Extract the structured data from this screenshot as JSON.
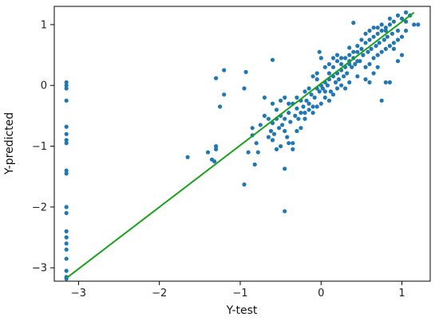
{
  "chart_data": {
    "type": "scatter",
    "title": "",
    "xlabel": "Y-test",
    "ylabel": "Y-predicted",
    "xlim": [
      -3.3,
      1.35
    ],
    "ylim": [
      -3.22,
      1.3
    ],
    "xticks": [
      -3,
      -2,
      -1,
      0,
      1
    ],
    "yticks": [
      -3,
      -2,
      -1,
      0,
      1
    ],
    "xtick_labels": [
      "−3",
      "−2",
      "−1",
      "0",
      "1"
    ],
    "ytick_labels": [
      "−3",
      "−2",
      "−1",
      "0",
      "1"
    ],
    "grid": false,
    "legend": "none",
    "point_color": "#1f77b4",
    "line_color": "#1aa01a",
    "fit_line": {
      "x": [
        -3.15,
        1.15
      ],
      "y": [
        -3.17,
        1.2
      ]
    },
    "series": [
      {
        "points": [
          [
            -3.15,
            0.05
          ],
          [
            -3.15,
            0.0
          ],
          [
            -3.15,
            -0.05
          ],
          [
            -3.15,
            -0.25
          ],
          [
            -3.15,
            -0.68
          ],
          [
            -3.15,
            -0.8
          ],
          [
            -3.15,
            -0.9
          ],
          [
            -3.15,
            -0.95
          ],
          [
            -3.15,
            -1.4
          ],
          [
            -3.15,
            -1.45
          ],
          [
            -3.15,
            -2.0
          ],
          [
            -3.15,
            -2.1
          ],
          [
            -3.15,
            -2.4
          ],
          [
            -3.15,
            -2.5
          ],
          [
            -3.15,
            -2.6
          ],
          [
            -3.15,
            -2.7
          ],
          [
            -3.15,
            -2.85
          ],
          [
            -3.15,
            -3.05
          ],
          [
            -3.15,
            -3.15
          ],
          [
            -3.15,
            -3.18
          ],
          [
            -1.65,
            -1.18
          ],
          [
            -1.4,
            -1.1
          ],
          [
            -1.35,
            -1.22
          ],
          [
            -1.32,
            -1.25
          ],
          [
            -1.3,
            -1.0
          ],
          [
            -1.3,
            -1.05
          ],
          [
            -1.25,
            -0.35
          ],
          [
            -1.2,
            -0.15
          ],
          [
            -1.2,
            0.25
          ],
          [
            -1.3,
            0.12
          ],
          [
            -0.95,
            -0.05
          ],
          [
            -0.93,
            0.22
          ],
          [
            -0.9,
            -1.1
          ],
          [
            -0.95,
            -1.63
          ],
          [
            -0.6,
            0.42
          ],
          [
            -0.45,
            -2.07
          ],
          [
            -0.45,
            -1.37
          ],
          [
            -0.85,
            -0.7
          ],
          [
            -0.85,
            -0.82
          ],
          [
            -0.82,
            -1.3
          ],
          [
            -0.7,
            -0.5
          ],
          [
            -0.65,
            -0.55
          ],
          [
            -0.62,
            -0.75
          ],
          [
            -0.6,
            -0.62
          ],
          [
            -0.58,
            -0.8
          ],
          [
            -0.55,
            -0.55
          ],
          [
            -0.52,
            -0.7
          ],
          [
            -0.5,
            -0.5
          ],
          [
            -0.48,
            -0.65
          ],
          [
            -0.45,
            -0.55
          ],
          [
            -0.42,
            -0.85
          ],
          [
            -0.4,
            -0.45
          ],
          [
            -0.38,
            -0.6
          ],
          [
            -0.35,
            -0.95
          ],
          [
            -0.32,
            -0.5
          ],
          [
            -0.3,
            -0.38
          ],
          [
            -0.28,
            -0.55
          ],
          [
            -0.25,
            -0.7
          ],
          [
            -0.22,
            -0.35
          ],
          [
            -0.2,
            -0.45
          ],
          [
            -0.18,
            -0.25
          ],
          [
            -0.15,
            -0.3
          ],
          [
            -0.12,
            -0.15
          ],
          [
            -0.1,
            -0.35
          ],
          [
            -0.08,
            -0.2
          ],
          [
            -0.05,
            -0.05
          ],
          [
            -0.02,
            -0.1
          ],
          [
            0.0,
            0.0
          ],
          [
            0.02,
            -0.05
          ],
          [
            0.05,
            0.05
          ],
          [
            0.08,
            0.0
          ],
          [
            0.1,
            0.1
          ],
          [
            0.12,
            -0.1
          ],
          [
            0.15,
            0.15
          ],
          [
            0.18,
            0.05
          ],
          [
            0.2,
            0.2
          ],
          [
            0.22,
            0.1
          ],
          [
            0.25,
            0.25
          ],
          [
            0.28,
            0.15
          ],
          [
            0.3,
            0.3
          ],
          [
            0.32,
            0.2
          ],
          [
            0.35,
            0.4
          ],
          [
            0.38,
            0.3
          ],
          [
            0.4,
            0.45
          ],
          [
            0.42,
            0.35
          ],
          [
            0.45,
            0.55
          ],
          [
            0.48,
            0.4
          ],
          [
            0.5,
            0.6
          ],
          [
            0.52,
            0.5
          ],
          [
            0.55,
            0.7
          ],
          [
            0.58,
            0.55
          ],
          [
            0.6,
            0.75
          ],
          [
            0.62,
            0.6
          ],
          [
            0.65,
            0.8
          ],
          [
            0.68,
            0.65
          ],
          [
            0.7,
            0.85
          ],
          [
            0.72,
            0.7
          ],
          [
            0.75,
            0.9
          ],
          [
            0.78,
            0.75
          ],
          [
            0.8,
            0.95
          ],
          [
            0.82,
            0.8
          ],
          [
            0.85,
            1.0
          ],
          [
            0.88,
            0.85
          ],
          [
            0.9,
            1.05
          ],
          [
            0.95,
            0.9
          ],
          [
            1.0,
            1.1
          ],
          [
            1.05,
            1.05
          ],
          [
            1.1,
            1.15
          ],
          [
            1.15,
            1.0
          ],
          [
            1.2,
            1.0
          ],
          [
            0.4,
            1.03
          ],
          [
            0.35,
            0.62
          ],
          [
            -0.7,
            -0.2
          ],
          [
            -0.6,
            -0.9
          ],
          [
            -0.55,
            -1.05
          ],
          [
            -0.5,
            -1.0
          ],
          [
            -0.65,
            -0.85
          ],
          [
            -0.75,
            -0.65
          ],
          [
            -0.8,
            -0.95
          ],
          [
            -0.78,
            -1.1
          ],
          [
            -0.4,
            -0.95
          ],
          [
            -0.35,
            -1.05
          ],
          [
            -0.3,
            -0.75
          ],
          [
            -0.25,
            -0.25
          ],
          [
            -0.2,
            -0.1
          ],
          [
            -0.15,
            -0.05
          ],
          [
            -0.1,
            0.15
          ],
          [
            -0.05,
            0.2
          ],
          [
            0.05,
            0.3
          ],
          [
            0.1,
            0.35
          ],
          [
            0.15,
            0.45
          ],
          [
            0.2,
            0.5
          ],
          [
            0.25,
            0.0
          ],
          [
            0.3,
            -0.05
          ],
          [
            0.35,
            0.05
          ],
          [
            0.45,
            0.15
          ],
          [
            0.55,
            0.3
          ],
          [
            0.6,
            0.35
          ],
          [
            0.65,
            0.45
          ],
          [
            0.7,
            0.5
          ],
          [
            0.75,
            0.55
          ],
          [
            0.8,
            0.6
          ],
          [
            0.85,
            0.65
          ],
          [
            0.9,
            0.7
          ],
          [
            0.95,
            0.75
          ],
          [
            1.0,
            0.8
          ],
          [
            1.05,
            0.9
          ],
          [
            0.0,
            0.45
          ],
          [
            -0.02,
            0.55
          ],
          [
            0.05,
            -0.2
          ],
          [
            0.1,
            -0.25
          ],
          [
            0.15,
            -0.15
          ],
          [
            0.2,
            -0.05
          ],
          [
            0.25,
            0.35
          ],
          [
            0.3,
            0.45
          ],
          [
            0.4,
            0.55
          ],
          [
            0.5,
            0.75
          ],
          [
            0.6,
            0.9
          ],
          [
            0.7,
            0.95
          ],
          [
            0.8,
            0.9
          ],
          [
            0.8,
            0.05
          ],
          [
            0.85,
            0.05
          ],
          [
            0.75,
            -0.25
          ],
          [
            0.6,
            0.05
          ],
          [
            0.55,
            0.1
          ],
          [
            0.45,
            0.4
          ],
          [
            0.35,
            0.35
          ],
          [
            0.2,
            0.4
          ],
          [
            -0.45,
            -0.2
          ],
          [
            -0.4,
            -0.3
          ],
          [
            -0.3,
            -0.2
          ],
          [
            -0.2,
            -0.55
          ],
          [
            -0.1,
            -0.45
          ],
          [
            -0.05,
            -0.35
          ],
          [
            0.0,
            -0.3
          ],
          [
            0.05,
            -0.1
          ],
          [
            -0.6,
            -0.3
          ],
          [
            -0.5,
            -0.25
          ],
          [
            -0.55,
            -0.4
          ],
          [
            -0.45,
            -0.75
          ],
          [
            -0.35,
            -0.3
          ],
          [
            -0.25,
            -0.45
          ],
          [
            -0.15,
            -0.4
          ],
          [
            -0.05,
            0.1
          ],
          [
            0.1,
            0.2
          ],
          [
            0.15,
            0.3
          ],
          [
            0.25,
            0.45
          ],
          [
            0.35,
            0.5
          ],
          [
            0.45,
            0.65
          ],
          [
            0.55,
            0.85
          ],
          [
            0.65,
            0.95
          ],
          [
            0.75,
            1.0
          ],
          [
            0.85,
            1.1
          ],
          [
            0.95,
            1.15
          ],
          [
            1.05,
            1.2
          ],
          [
            0.9,
            0.6
          ],
          [
            0.95,
            0.4
          ],
          [
            1.0,
            0.5
          ],
          [
            0.7,
            0.3
          ],
          [
            0.65,
            0.2
          ]
        ]
      }
    ]
  }
}
